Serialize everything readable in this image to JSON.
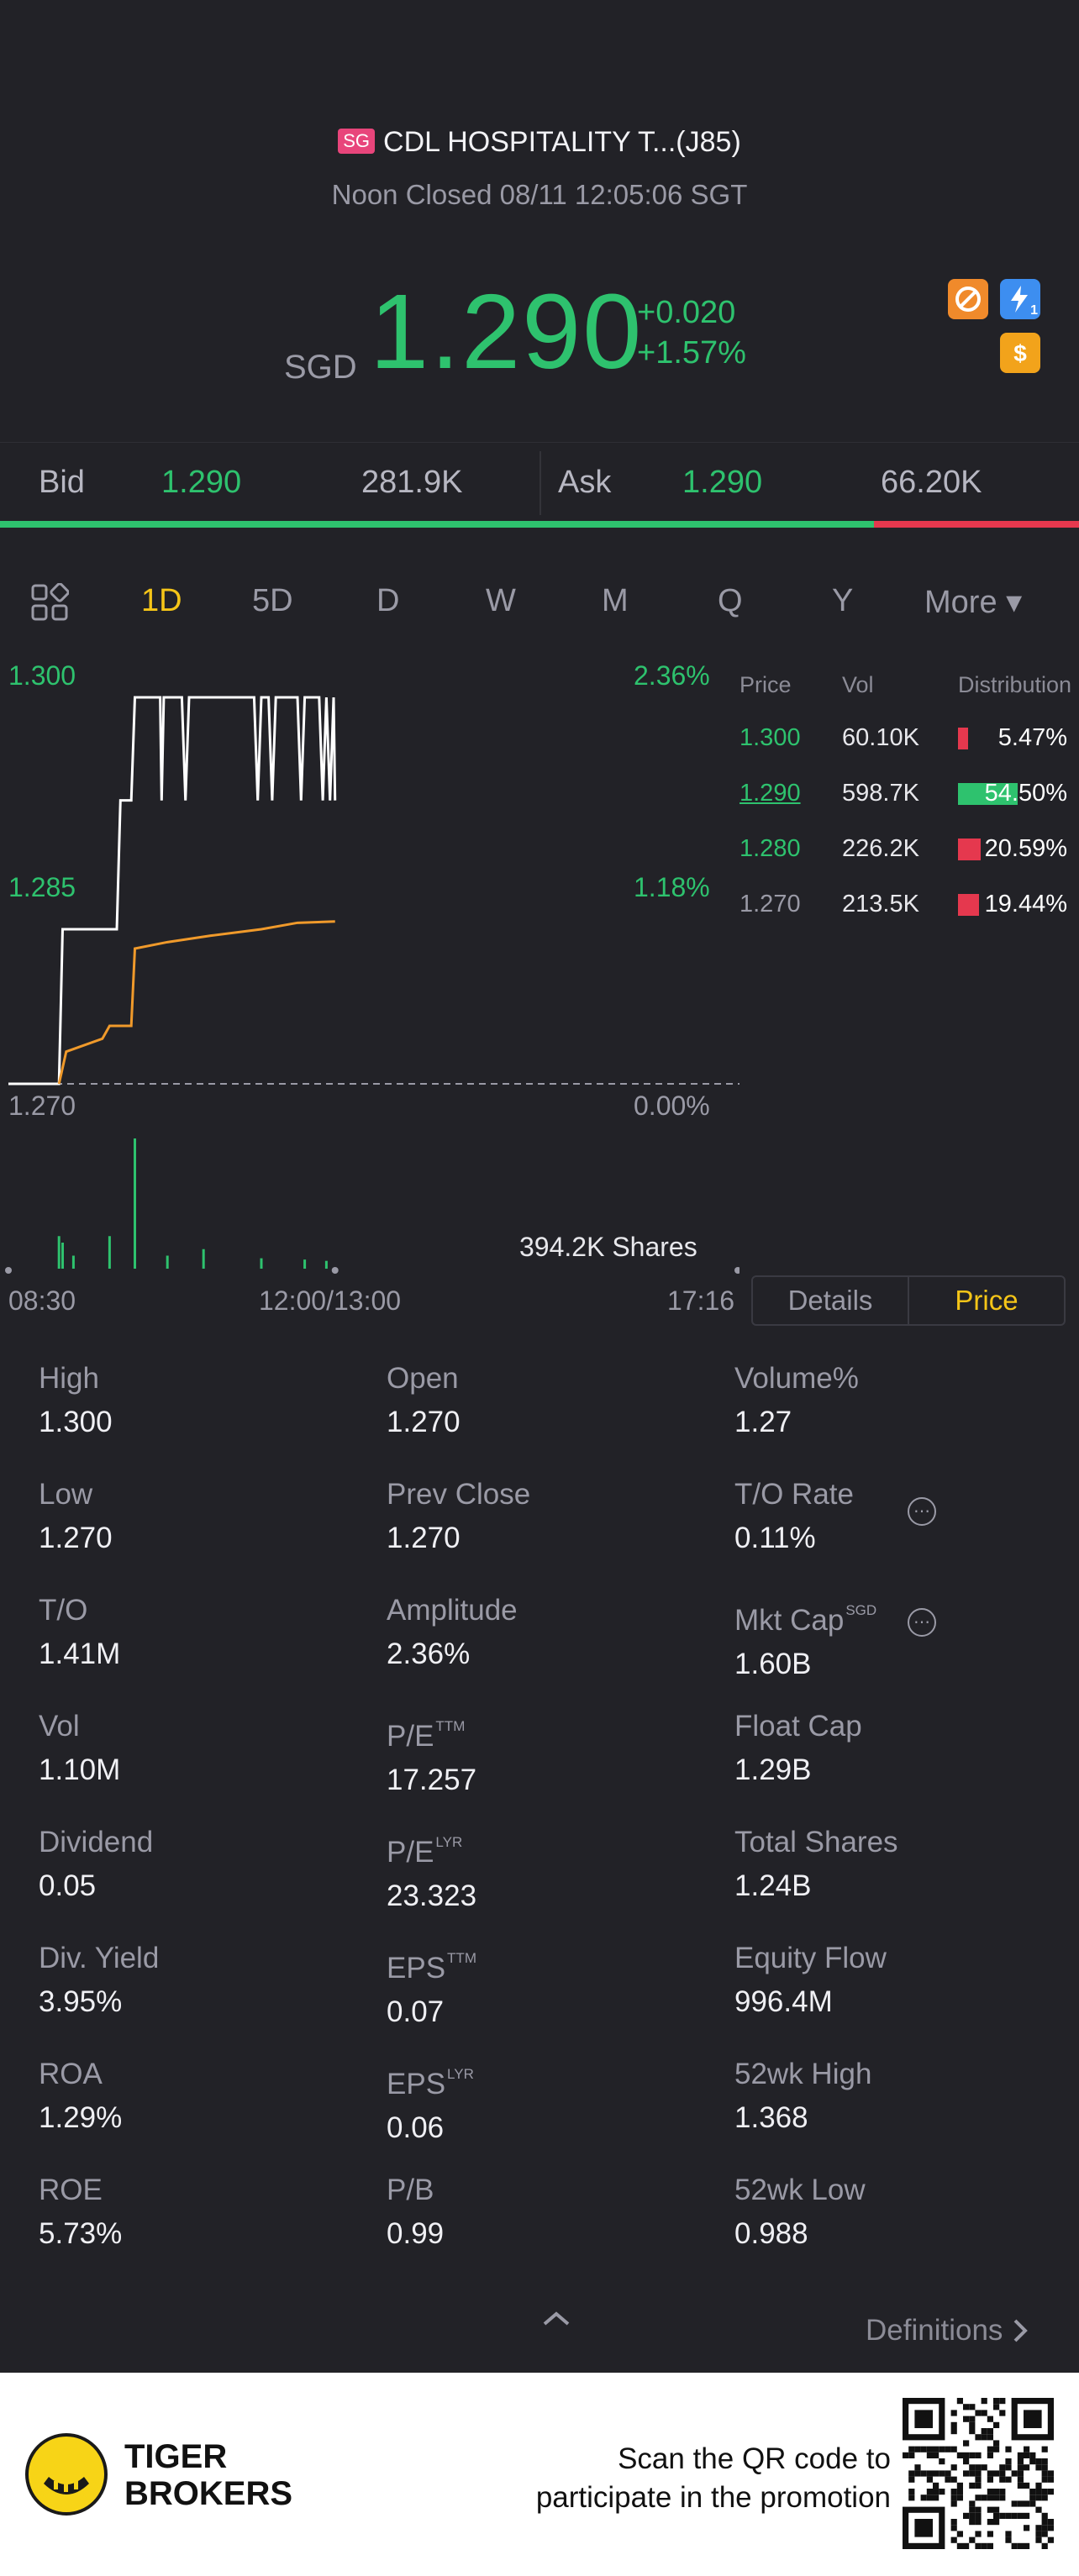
{
  "header": {
    "market_badge": "SG",
    "title": "CDL HOSPITALITY T...(J85)",
    "status": "Noon Closed 08/11 12:05:06 SGT",
    "currency": "SGD",
    "price": "1.290",
    "change_abs": "+0.020",
    "change_pct": "+1.57%",
    "icons": [
      "no-short-icon",
      "flash-icon",
      "dollar-icon"
    ],
    "flash_badge": "1"
  },
  "bidask": {
    "bid_label": "Bid",
    "bid_price": "1.290",
    "bid_vol": "281.9K",
    "ask_label": "Ask",
    "ask_price": "1.290",
    "ask_vol": "66.20K",
    "bid_ratio": 0.81
  },
  "tabs": [
    "1D",
    "5D",
    "D",
    "W",
    "M",
    "Q",
    "Y",
    "More ▾"
  ],
  "active_tab": "1D",
  "chart": {
    "y_top": "1.300",
    "y_mid": "1.285",
    "y_bottom": "1.270",
    "pct_top": "2.36%",
    "pct_mid": "1.18%",
    "pct_bottom": "0.00%",
    "volume_label": "394.2K Shares",
    "time_start": "08:30",
    "time_mid": "12:00/13:00",
    "time_end": "17:16"
  },
  "chart_data": {
    "type": "line",
    "title": "",
    "xlabel": "",
    "ylabel": "",
    "x_ticks": [
      "08:30",
      "12:00/13:00",
      "17:16"
    ],
    "ylim": [
      1.27,
      1.3
    ],
    "grid": false,
    "series": [
      {
        "color": "#ffffff",
        "points": [
          [
            0,
            1.27
          ],
          [
            0.07,
            1.27
          ],
          [
            0.075,
            1.282
          ],
          [
            0.15,
            1.282
          ],
          [
            0.155,
            1.292
          ],
          [
            0.17,
            1.292
          ],
          [
            0.175,
            1.3
          ],
          [
            0.21,
            1.3
          ],
          [
            0.212,
            1.292
          ],
          [
            0.215,
            1.3
          ],
          [
            0.24,
            1.3
          ],
          [
            0.245,
            1.292
          ],
          [
            0.25,
            1.3
          ],
          [
            0.34,
            1.3
          ],
          [
            0.345,
            1.292
          ],
          [
            0.35,
            1.3
          ],
          [
            0.36,
            1.3
          ],
          [
            0.365,
            1.292
          ],
          [
            0.37,
            1.3
          ],
          [
            0.4,
            1.3
          ],
          [
            0.405,
            1.292
          ],
          [
            0.41,
            1.3
          ],
          [
            0.43,
            1.3
          ],
          [
            0.435,
            1.292
          ],
          [
            0.44,
            1.3
          ],
          [
            0.445,
            1.292
          ],
          [
            0.45,
            1.3
          ],
          [
            0.452,
            1.292
          ]
        ]
      },
      {
        "color": "#f09a2b",
        "points": [
          [
            0.07,
            1.27
          ],
          [
            0.08,
            1.2725
          ],
          [
            0.13,
            1.2735
          ],
          [
            0.14,
            1.2745
          ],
          [
            0.17,
            1.2745
          ],
          [
            0.175,
            1.2805
          ],
          [
            0.22,
            1.281
          ],
          [
            0.28,
            1.2815
          ],
          [
            0.35,
            1.282
          ],
          [
            0.4,
            1.2825
          ],
          [
            0.452,
            1.2826
          ]
        ]
      }
    ],
    "volume": [
      [
        0.07,
        0.25
      ],
      [
        0.075,
        0.2
      ],
      [
        0.09,
        0.1
      ],
      [
        0.14,
        0.25
      ],
      [
        0.175,
        1.0
      ],
      [
        0.22,
        0.1
      ],
      [
        0.27,
        0.15
      ],
      [
        0.35,
        0.08
      ],
      [
        0.41,
        0.07
      ],
      [
        0.44,
        0.06
      ]
    ]
  },
  "distribution": {
    "headers": [
      "Price",
      "Vol",
      "Distribution"
    ],
    "rows": [
      {
        "price": "1.300",
        "vol": "60.10K",
        "pct": "5.47%",
        "frac": 0.0547,
        "color": "#e5384e",
        "price_color": "#2ec26e",
        "underline": false
      },
      {
        "price": "1.290",
        "vol": "598.7K",
        "pct": "54.50%",
        "frac": 0.545,
        "color": "#2ec26e",
        "price_color": "#2ec26e",
        "underline": true
      },
      {
        "price": "1.280",
        "vol": "226.2K",
        "pct": "20.59%",
        "frac": 0.2059,
        "color": "#e5384e",
        "price_color": "#2ec26e",
        "underline": false
      },
      {
        "price": "1.270",
        "vol": "213.5K",
        "pct": "19.44%",
        "frac": 0.1944,
        "color": "#e5384e",
        "price_color": "#9a9aa6",
        "underline": false
      }
    ]
  },
  "toggle": {
    "details": "Details",
    "price": "Price"
  },
  "stats": [
    {
      "k": "High",
      "v": "1.300",
      "sup": ""
    },
    {
      "k": "Open",
      "v": "1.270",
      "sup": ""
    },
    {
      "k": "Volume%",
      "v": "1.27",
      "sup": ""
    },
    {
      "k": "Low",
      "v": "1.270",
      "sup": ""
    },
    {
      "k": "Prev Close",
      "v": "1.270",
      "sup": ""
    },
    {
      "k": "T/O Rate",
      "v": "0.11%",
      "sup": ""
    },
    {
      "k": "T/O",
      "v": "1.41M",
      "sup": ""
    },
    {
      "k": "Amplitude",
      "v": "2.36%",
      "sup": ""
    },
    {
      "k": "Mkt Cap",
      "v": "1.60B",
      "sup": "SGD"
    },
    {
      "k": "Vol",
      "v": "1.10M",
      "sup": ""
    },
    {
      "k": "P/E",
      "v": "17.257",
      "sup": "TTM"
    },
    {
      "k": "Float Cap",
      "v": "1.29B",
      "sup": ""
    },
    {
      "k": "Dividend",
      "v": "0.05",
      "sup": ""
    },
    {
      "k": "P/E",
      "v": "23.323",
      "sup": "LYR"
    },
    {
      "k": "Total Shares",
      "v": "1.24B",
      "sup": ""
    },
    {
      "k": "Div. Yield",
      "v": "3.95%",
      "sup": ""
    },
    {
      "k": "EPS",
      "v": "0.07",
      "sup": "TTM"
    },
    {
      "k": "Equity Flow",
      "v": "996.4M",
      "sup": ""
    },
    {
      "k": "ROA",
      "v": "1.29%",
      "sup": ""
    },
    {
      "k": "EPS",
      "v": "0.06",
      "sup": "LYR"
    },
    {
      "k": "52wk High",
      "v": "1.368",
      "sup": ""
    },
    {
      "k": "ROE",
      "v": "5.73%",
      "sup": ""
    },
    {
      "k": "P/B",
      "v": "0.99",
      "sup": ""
    },
    {
      "k": "52wk Low",
      "v": "0.988",
      "sup": ""
    }
  ],
  "info_icon_glyph": "⋯",
  "definitions": "Definitions",
  "footer": {
    "brand_line1": "TIGER",
    "brand_line2": "BROKERS",
    "promo_line1": "Scan the QR code to",
    "promo_line2": "participate in the promotion"
  },
  "colors": {
    "green": "#2ec26e",
    "red": "#e5384e",
    "accent": "#f5c518",
    "background": "#222227"
  }
}
